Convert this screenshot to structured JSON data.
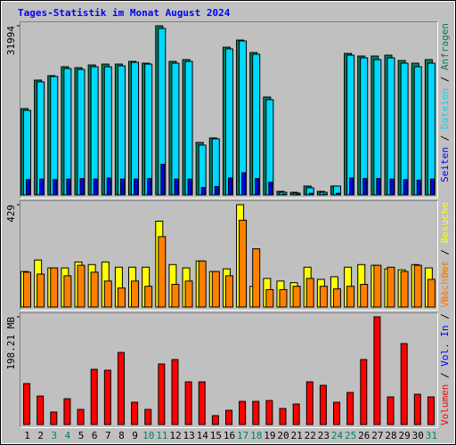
{
  "legend_separator": " / ",
  "chart_data": [
    {
      "type": "bar",
      "title": "Tages-Statistik im Monat August 2024",
      "ylim": [
        0,
        31994
      ],
      "yticks": [
        31994
      ],
      "legend": "top",
      "series": [
        {
          "name": "Anfragen",
          "color": "#008060",
          "values": [
            16330,
            21720,
            22560,
            24250,
            24080,
            24580,
            24750,
            24750,
            25260,
            24920,
            31994,
            25260,
            25600,
            9930,
            10780,
            27950,
            29300,
            26940,
            18520,
            670,
            500,
            1680,
            670,
            1680,
            26770,
            26270,
            26270,
            26440,
            25430,
            24920,
            25600
          ]
        },
        {
          "name": "Dateien",
          "color": "#00d8ff",
          "values": [
            16000,
            21390,
            22400,
            23910,
            23740,
            24250,
            24250,
            24410,
            25090,
            24750,
            31490,
            24920,
            25260,
            9430,
            10610,
            27620,
            29130,
            26610,
            18020,
            500,
            340,
            1350,
            500,
            1680,
            26440,
            25930,
            25600,
            25930,
            24920,
            24250,
            24920
          ]
        },
        {
          "name": "Seiten",
          "color": "#0000ff",
          "values": [
            2900,
            3000,
            2900,
            3000,
            3100,
            3000,
            3200,
            3000,
            3000,
            3100,
            5800,
            3000,
            3000,
            1400,
            1600,
            3200,
            4200,
            3100,
            2400,
            150,
            120,
            300,
            150,
            300,
            3200,
            3100,
            3100,
            3000,
            2900,
            2800,
            3000
          ]
        }
      ]
    },
    {
      "type": "bar",
      "ylim": [
        0,
        429
      ],
      "yticks": [
        429
      ],
      "legend": "top",
      "series": [
        {
          "name": "Besuche",
          "color": "#ffff00",
          "values": [
            149,
            197,
            164,
            164,
            189,
            178,
            189,
            167,
            167,
            167,
            360,
            178,
            164,
            193,
            149,
            160,
            429,
            87,
            120,
            109,
            102,
            167,
            116,
            127,
            167,
            178,
            175,
            160,
            156,
            178,
            164
          ]
        },
        {
          "name": "Rechner",
          "color": "#ff8000",
          "values": [
            146,
            138,
            164,
            131,
            175,
            146,
            109,
            80,
            109,
            87,
            295,
            95,
            109,
            193,
            149,
            131,
            364,
            244,
            73,
            73,
            87,
            120,
            87,
            76,
            87,
            95,
            175,
            167,
            149,
            175,
            116
          ]
        }
      ]
    },
    {
      "type": "bar",
      "ylim": [
        0,
        198.21
      ],
      "yticks": [
        {
          "value": 198.21,
          "label": "198.21 MB"
        }
      ],
      "legend": "bottom",
      "categories": [
        "1",
        "2",
        "3",
        "4",
        "5",
        "6",
        "7",
        "8",
        "9",
        "10",
        "11",
        "12",
        "13",
        "14",
        "15",
        "16",
        "17",
        "18",
        "19",
        "20",
        "21",
        "22",
        "23",
        "24",
        "25",
        "26",
        "27",
        "28",
        "29",
        "30",
        "31"
      ],
      "category_colors": [
        "#000000",
        "#000000",
        "#008060",
        "#008060",
        "#000000",
        "#000000",
        "#000000",
        "#000000",
        "#000000",
        "#008060",
        "#008060",
        "#000000",
        "#000000",
        "#000000",
        "#000000",
        "#000000",
        "#008060",
        "#008060",
        "#000000",
        "#000000",
        "#000000",
        "#000000",
        "#000000",
        "#008060",
        "#008060",
        "#000000",
        "#000000",
        "#000000",
        "#000000",
        "#000000",
        "#008060"
      ],
      "series": [
        {
          "name": "Volumen",
          "color": "#ff0000",
          "values": [
            75.4,
            52.4,
            22.9,
            47.5,
            27.8,
            101.6,
            99.9,
            132.7,
            41,
            27.8,
            111.4,
            119.6,
            78.6,
            78.6,
            16.4,
            26.2,
            42.6,
            42.6,
            44.2,
            29.5,
            37.7,
            78.6,
            72.1,
            41,
            59,
            119.6,
            198.21,
            50.8,
            149,
            55.7,
            50.8
          ]
        }
      ],
      "legend_extra": [
        {
          "name": "Vol. In",
          "color": "#0000ff"
        },
        {
          "name": "Vol. Out",
          "color": "#ff8000"
        }
      ]
    }
  ]
}
